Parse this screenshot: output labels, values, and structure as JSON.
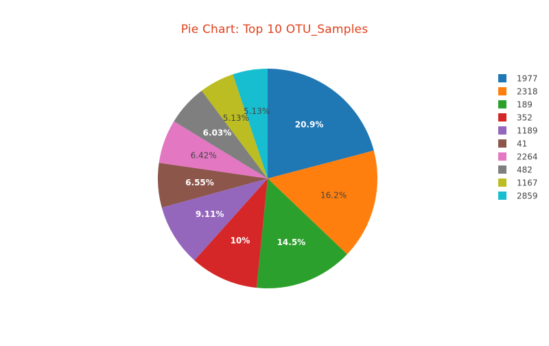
{
  "chart_data": {
    "type": "pie",
    "title": "Pie Chart: Top 10 OTU_Samples",
    "slices": [
      {
        "label": "1977",
        "value": 20.9,
        "pct_label": "20.9%",
        "color": "#1f77b4"
      },
      {
        "label": "2318",
        "value": 16.2,
        "pct_label": "16.2%",
        "color": "#ff7f0e"
      },
      {
        "label": "189",
        "value": 14.5,
        "pct_label": "14.5%",
        "color": "#2ca02c"
      },
      {
        "label": "352",
        "value": 10.0,
        "pct_label": "10%",
        "color": "#d62728"
      },
      {
        "label": "1189",
        "value": 9.11,
        "pct_label": "9.11%",
        "color": "#9467bd"
      },
      {
        "label": "41",
        "value": 6.55,
        "pct_label": "6.55%",
        "color": "#8c564b"
      },
      {
        "label": "2264",
        "value": 6.42,
        "pct_label": "6.42%",
        "color": "#e377c2"
      },
      {
        "label": "482",
        "value": 6.03,
        "pct_label": "6.03%",
        "color": "#7f7f7f"
      },
      {
        "label": "1167",
        "value": 5.13,
        "pct_label": "5.13%",
        "color": "#bcbd22"
      },
      {
        "label": "2859",
        "value": 5.13,
        "pct_label": "5.13%",
        "color": "#17becf"
      }
    ],
    "direction": "counterclockwise",
    "legend_position": "right"
  },
  "colors": {
    "title": "#e0401c",
    "label_dark": "#444444",
    "label_light": "#ffffff",
    "slice_border": "#ffffff"
  }
}
